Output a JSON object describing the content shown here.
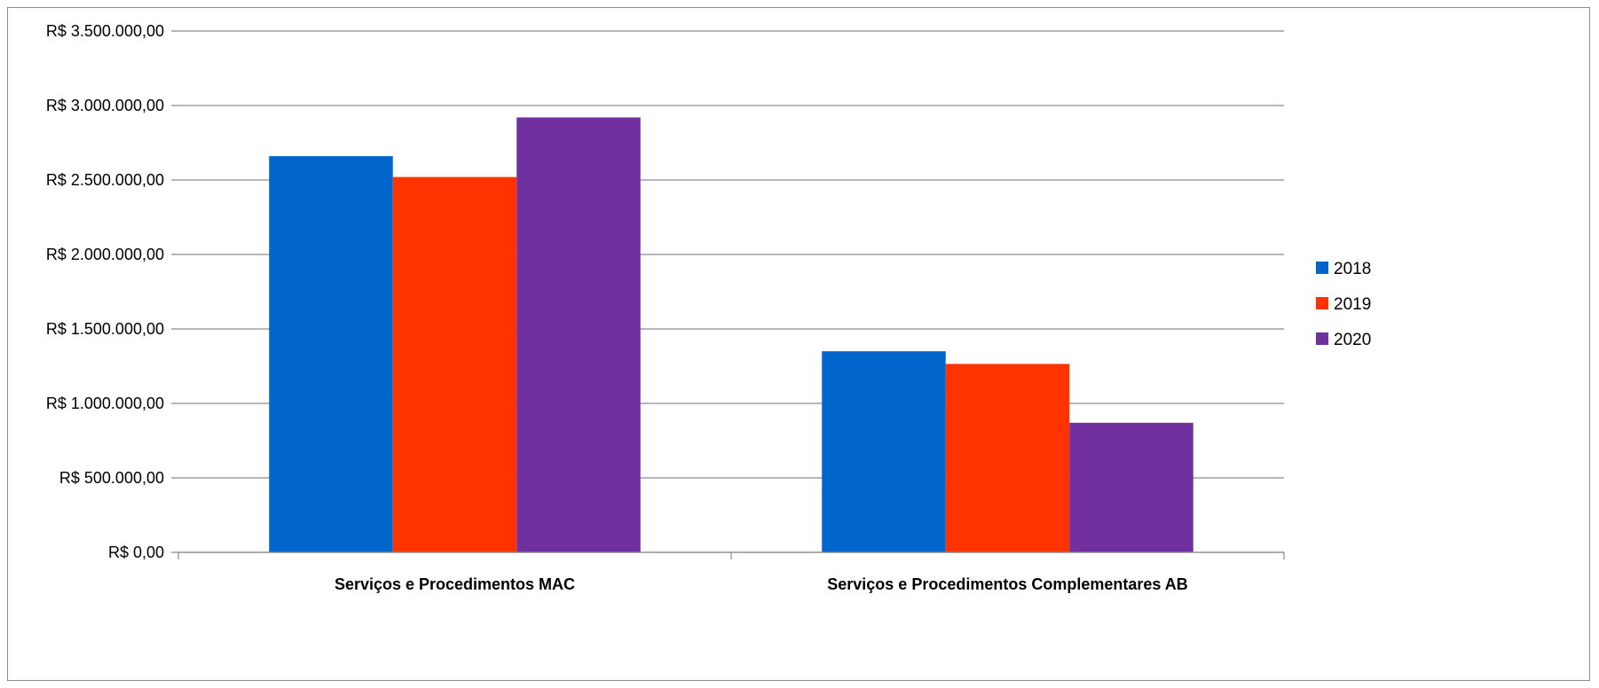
{
  "chart_data": {
    "type": "bar",
    "title": "",
    "xlabel": "",
    "ylabel": "",
    "categories": [
      "Serviços e Procedimentos MAC",
      "Serviços e Procedimentos Complementares AB"
    ],
    "series": [
      {
        "name": "2018",
        "color": "#0066CC",
        "values": [
          2660000,
          1350000
        ]
      },
      {
        "name": "2019",
        "color": "#FF3300",
        "values": [
          2520000,
          1265000
        ]
      },
      {
        "name": "2020",
        "color": "#7030A0",
        "values": [
          2920000,
          870000
        ]
      }
    ],
    "ylim": [
      0,
      3500000
    ],
    "yticks": [
      0,
      500000,
      1000000,
      1500000,
      2000000,
      2500000,
      3000000,
      3500000
    ],
    "ytick_labels": [
      "R$ 0,00",
      "R$ 500.000,00",
      "R$ 1.000.000,00",
      "R$ 1.500.000,00",
      "R$ 2.000.000,00",
      "R$ 2.500.000,00",
      "R$ 3.000.000,00",
      "R$ 3.500.000,00"
    ],
    "grid": true,
    "legend_position": "right"
  }
}
